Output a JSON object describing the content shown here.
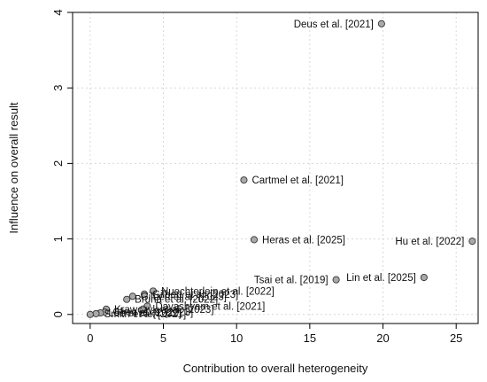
{
  "chart_data": {
    "type": "scatter",
    "xlabel": "Contribution to overall heterogeneity",
    "ylabel": "Influence on overall result",
    "xlim": [
      -1.2,
      26.5
    ],
    "ylim": [
      -0.12,
      4.0
    ],
    "xticks": [
      0,
      5,
      10,
      15,
      20,
      25
    ],
    "yticks": [
      0,
      1,
      2,
      3,
      4
    ],
    "grid": true,
    "point_color": "#a9a9a9",
    "points": [
      {
        "x": 19.9,
        "y": 3.85,
        "label": "Deus et al. [2021]",
        "anchor": "end"
      },
      {
        "x": 10.5,
        "y": 1.78,
        "label": "Cartmel et al. [2021]",
        "anchor": "start"
      },
      {
        "x": 11.2,
        "y": 0.99,
        "label": "Heras et al. [2025]",
        "anchor": "start"
      },
      {
        "x": 26.1,
        "y": 0.97,
        "label": "Hu et al. [2022]",
        "anchor": "end"
      },
      {
        "x": 22.8,
        "y": 0.49,
        "label": "Lin et al. [2025]",
        "anchor": "end"
      },
      {
        "x": 16.8,
        "y": 0.46,
        "label": "Tsai et al. [2019]",
        "anchor": "end"
      },
      {
        "x": 4.3,
        "y": 0.31,
        "label": "Nuechterlein et al. [2022]",
        "anchor": "start"
      },
      {
        "x": 3.7,
        "y": 0.27,
        "label": "Gilbert et al. [2023]",
        "anchor": "start"
      },
      {
        "x": 2.9,
        "y": 0.24,
        "label": "Gilbert et al. [2023]",
        "anchor": "start"
      },
      {
        "x": 2.5,
        "y": 0.2,
        "label": "Bruna et al. [2022]",
        "anchor": "start"
      },
      {
        "x": 3.9,
        "y": 0.11,
        "label": "Dayashyam et al. [2021]",
        "anchor": "start"
      },
      {
        "x": 1.1,
        "y": 0.07,
        "label": "Krawczyk et al. [2023]",
        "anchor": "start"
      },
      {
        "x": 3.6,
        "y": 0.07,
        "label": "",
        "anchor": "start"
      },
      {
        "x": 1.0,
        "y": 0.03,
        "label": "Chen et al. [2023]",
        "anchor": "start"
      },
      {
        "x": 0.7,
        "y": 0.02,
        "label": "Lee et al. [2022]",
        "anchor": "start"
      },
      {
        "x": 0.4,
        "y": 0.01,
        "label": "Smith et al. [2021]",
        "anchor": "start"
      },
      {
        "x": 0.0,
        "y": 0.0,
        "label": "",
        "anchor": "start"
      }
    ]
  }
}
